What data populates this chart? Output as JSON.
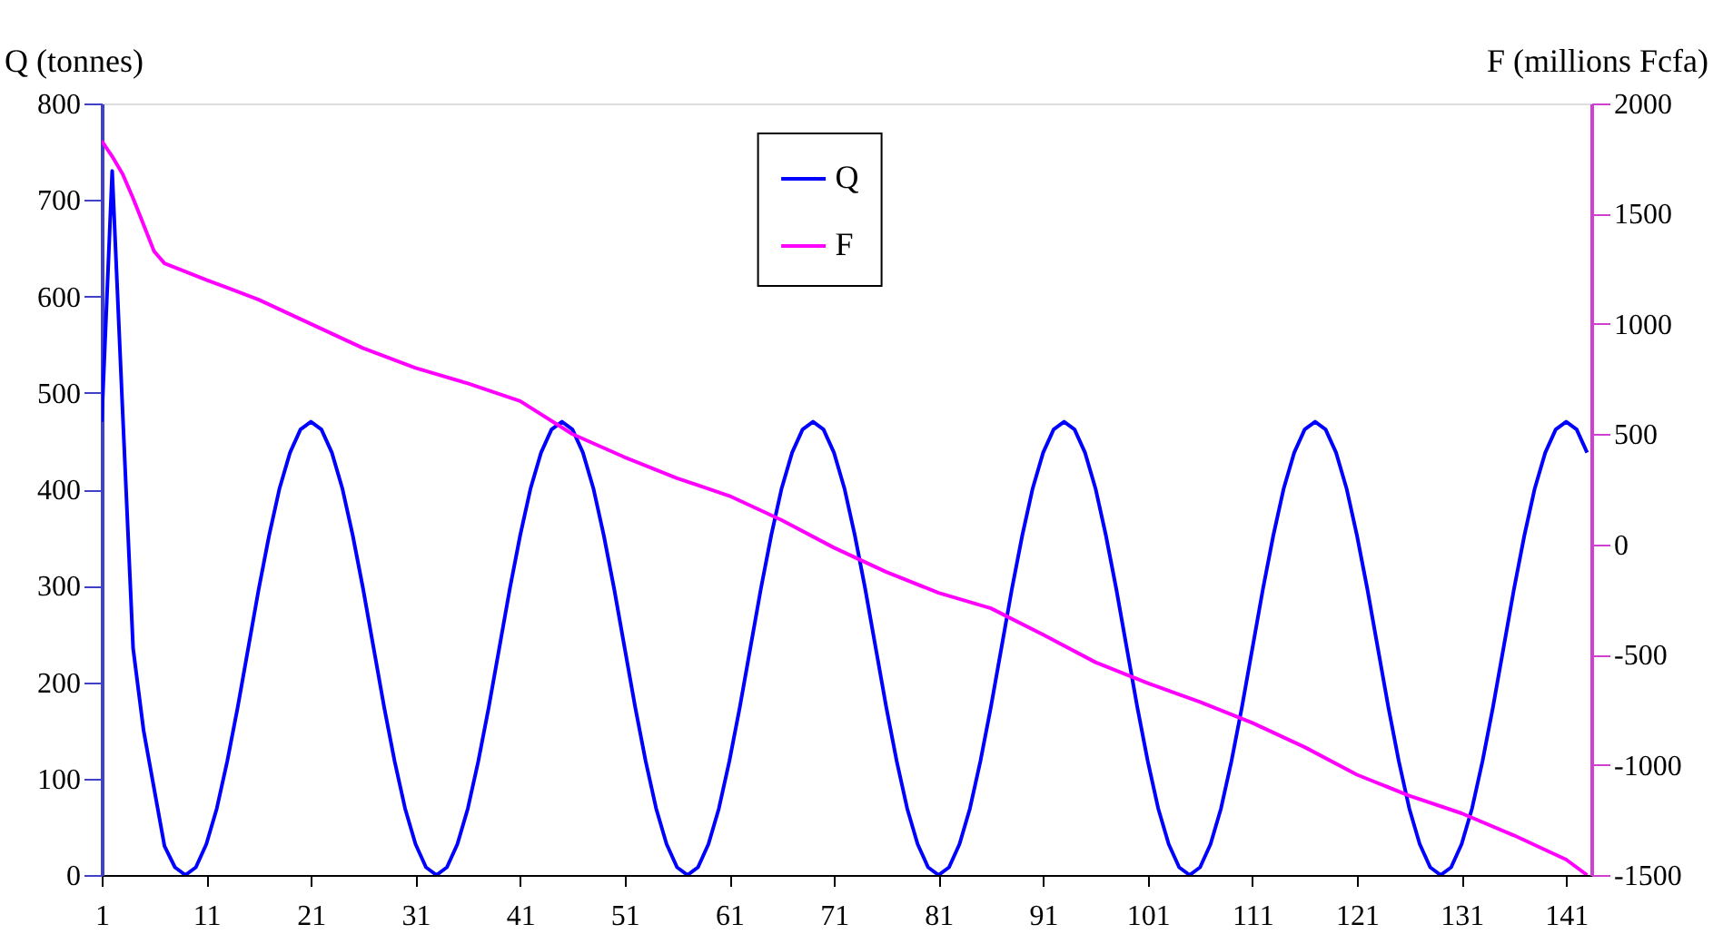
{
  "chart_data": {
    "type": "line",
    "ylabel": "Q (tonnes)",
    "y2label": "F (millions Fcfa)",
    "x": [
      1,
      2,
      3,
      4,
      5,
      6,
      7,
      8,
      9,
      10,
      11,
      12,
      13,
      14,
      15,
      16,
      17,
      18,
      19,
      20,
      21,
      22,
      23,
      24,
      25,
      26,
      27,
      28,
      29,
      30,
      31,
      32,
      33,
      34,
      35,
      36,
      37,
      38,
      39,
      40,
      41,
      42,
      43,
      44,
      45,
      46,
      47,
      48,
      49,
      50,
      51,
      52,
      53,
      54,
      55,
      56,
      57,
      58,
      59,
      60,
      61,
      62,
      63,
      64,
      65,
      66,
      67,
      68,
      69,
      70,
      71,
      72,
      73,
      74,
      75,
      76,
      77,
      78,
      79,
      80,
      81,
      82,
      83,
      84,
      85,
      86,
      87,
      88,
      89,
      90,
      91,
      92,
      93,
      94,
      95,
      96,
      97,
      98,
      99,
      100,
      101,
      102,
      103,
      104,
      105,
      106,
      107,
      108,
      109,
      110,
      111,
      112,
      113,
      114,
      115,
      116,
      117,
      118,
      119,
      120,
      121,
      122,
      123,
      124,
      125,
      126,
      127,
      128,
      129,
      130,
      131,
      132,
      133,
      134,
      135,
      136,
      137,
      138,
      139,
      140,
      141,
      142,
      143
    ],
    "series": [
      {
        "name": "Q",
        "color": "#0000ff",
        "values": [
          470,
          730,
          480,
          235,
          150,
          90,
          30,
          8,
          0,
          8,
          32,
          69,
          118,
          174,
          235,
          296,
          352,
          401,
          438,
          462,
          470,
          462,
          438,
          401,
          352,
          296,
          235,
          174,
          118,
          69,
          32,
          8,
          0,
          8,
          32,
          69,
          118,
          174,
          235,
          296,
          352,
          401,
          438,
          462,
          470,
          462,
          438,
          401,
          352,
          296,
          235,
          174,
          118,
          69,
          32,
          8,
          0,
          8,
          32,
          69,
          118,
          174,
          235,
          296,
          352,
          401,
          438,
          462,
          470,
          462,
          438,
          401,
          352,
          296,
          235,
          174,
          118,
          69,
          32,
          8,
          0,
          8,
          32,
          69,
          118,
          174,
          235,
          296,
          352,
          401,
          438,
          462,
          470,
          462,
          438,
          401,
          352,
          296,
          235,
          174,
          118,
          69,
          32,
          8,
          0,
          8,
          32,
          69,
          118,
          174,
          235,
          296,
          352,
          401,
          438,
          462,
          470,
          462,
          438,
          401,
          352,
          296,
          235,
          174,
          118,
          69,
          32,
          8,
          0,
          8,
          32,
          69,
          118,
          174,
          235,
          296,
          352,
          401,
          438,
          462,
          470,
          462,
          438
        ]
      },
      {
        "name": "F",
        "color": "#ff00ff",
        "axis": "y2",
        "x": [
          1,
          2,
          3,
          4,
          5,
          6,
          7,
          11,
          16,
          21,
          26,
          31,
          36,
          41,
          46,
          51,
          56,
          61,
          66,
          71,
          76,
          81,
          86,
          91,
          96,
          101,
          106,
          111,
          116,
          121,
          126,
          131,
          136,
          141,
          143
        ],
        "values": [
          1830,
          1760,
          1680,
          1570,
          1450,
          1330,
          1275,
          1200,
          1110,
          1000,
          890,
          800,
          730,
          650,
          500,
          395,
          300,
          220,
          110,
          -15,
          -125,
          -220,
          -290,
          -410,
          -535,
          -630,
          -715,
          -810,
          -920,
          -1045,
          -1140,
          -1220,
          -1320,
          -1430,
          -1500
        ]
      }
    ],
    "xlim": [
      1,
      143.4
    ],
    "xticks": [
      1,
      11,
      21,
      31,
      41,
      51,
      61,
      71,
      81,
      91,
      101,
      111,
      121,
      131,
      141
    ],
    "ylim": [
      0,
      800
    ],
    "yticks": [
      0,
      100,
      200,
      300,
      400,
      500,
      600,
      700,
      800
    ],
    "y2lim": [
      -1500,
      2000
    ],
    "y2ticks": [
      -1500,
      -1000,
      -500,
      0,
      500,
      1000,
      1500,
      2000
    ],
    "grid": false,
    "legend": "top",
    "line_style": "solid",
    "marker": "none"
  }
}
